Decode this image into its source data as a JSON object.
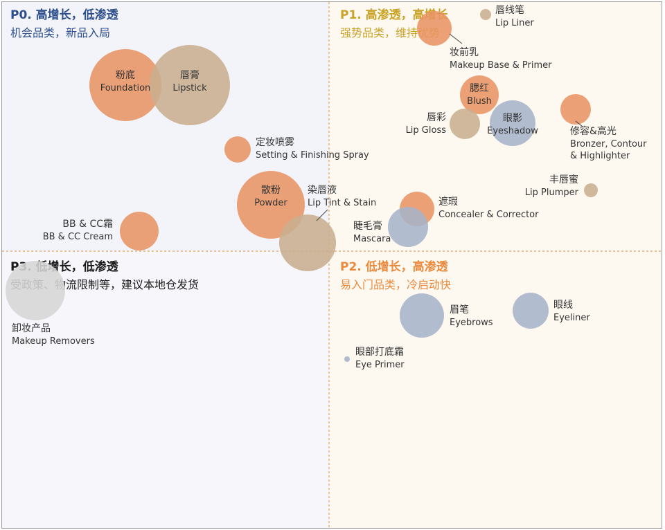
{
  "colors": {
    "orange": "#E89463",
    "tan": "#C8AE8E",
    "blue": "#A7B3C9",
    "gray": "#D6D6D6",
    "divider": "#E0A05C",
    "q0_text": "#2E4F8C",
    "q1_text": "#C9A227",
    "q2_text": "#E98A3E",
    "q3_text": "#1A1A1A",
    "q0_bg": "#F3F4FA",
    "q1_bg": "#FDF9F1",
    "q2_bg": "#FDF9F1",
    "q3_bg": "#F6F6FB"
  },
  "quadrants": [
    {
      "id": "P0",
      "title": "P0. 高增长，低渗透",
      "subtitle": "机会品类，新品入局"
    },
    {
      "id": "P1",
      "title": "P1. 高渗透，高增长",
      "subtitle": "强势品类，维持优势"
    },
    {
      "id": "P2",
      "title": "P2. 低增长，高渗透",
      "subtitle": "易入门品类，冷启动快"
    },
    {
      "id": "P3",
      "title": "P3. 低增长，低渗透",
      "subtitle": "受政策、物流限制等，建议本地仓发货"
    }
  ],
  "chart_data": {
    "type": "scatter",
    "series": [
      {
        "zh": "粉底",
        "en": "Foundation",
        "color": "orange"
      },
      {
        "zh": "唇膏",
        "en": "Lipstick",
        "color": "tan"
      },
      {
        "zh": "定妆喷雾",
        "en": "Setting & Finishing Spray",
        "color": "orange"
      },
      {
        "zh": "散粉",
        "en": "Powder",
        "color": "orange"
      },
      {
        "zh": "染唇液",
        "en": "Lip Tint & Stain",
        "color": "tan"
      },
      {
        "zh": "BB & CC霜",
        "en": "BB & CC Cream",
        "color": "orange"
      },
      {
        "zh": "卸妆产品",
        "en": "Makeup Removers",
        "color": "gray"
      },
      {
        "zh": "唇线笔",
        "en": "Lip Liner",
        "color": "tan"
      },
      {
        "zh": "妆前乳",
        "en": "Makeup Base & Primer",
        "color": "orange"
      },
      {
        "zh": "腮红",
        "en": "Blush",
        "color": "orange"
      },
      {
        "zh": "唇彩",
        "en": "Lip Gloss",
        "color": "tan"
      },
      {
        "zh": "眼影",
        "en": "Eyeshadow",
        "color": "blue"
      },
      {
        "zh": "修容&高光",
        "en": "Bronzer, Contour & Highlighter",
        "color": "orange"
      },
      {
        "zh": "丰唇蜜",
        "en": "Lip Plumper",
        "color": "tan"
      },
      {
        "zh": "遮瑕",
        "en": "Concealer & Corrector",
        "color": "orange"
      },
      {
        "zh": "睫毛膏",
        "en": "Mascara",
        "color": "blue"
      },
      {
        "zh": "眉笔",
        "en": "Eyebrows",
        "color": "blue"
      },
      {
        "zh": "眼线",
        "en": "Eyeliner",
        "color": "blue"
      },
      {
        "zh": "眼部打底霜",
        "en": "Eye Primer",
        "color": "blue"
      }
    ]
  }
}
